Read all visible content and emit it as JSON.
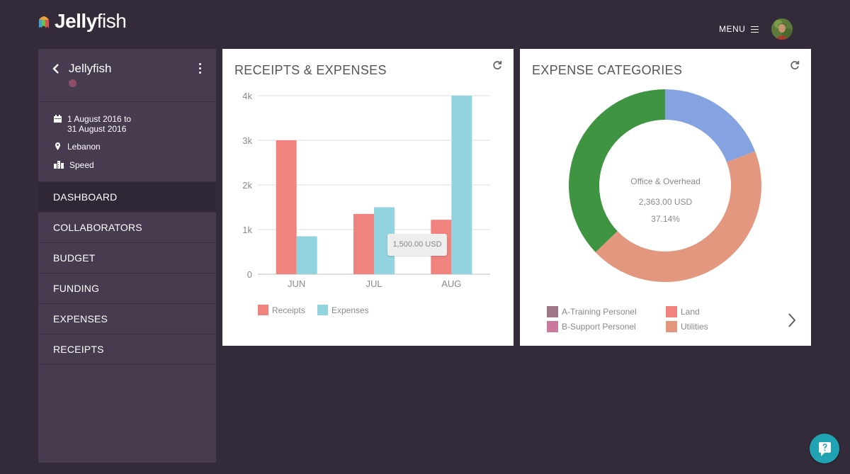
{
  "app": {
    "logo_bold": "Jelly",
    "logo_thin": "fish",
    "menu_label": "MENU"
  },
  "sidebar": {
    "title": "Jellyfish",
    "date_line1": "1 August 2016 to",
    "date_line2": "31 August 2016",
    "location": "Lebanon",
    "category": "Speed",
    "nav": [
      {
        "label": "DASHBOARD",
        "active": true
      },
      {
        "label": "COLLABORATORS",
        "active": false
      },
      {
        "label": "BUDGET",
        "active": false
      },
      {
        "label": "FUNDING",
        "active": false
      },
      {
        "label": "EXPENSES",
        "active": false
      },
      {
        "label": "RECEIPTS",
        "active": false
      }
    ]
  },
  "receipts_card": {
    "title": "RECEIPTS & EXPENSES",
    "tooltip": "1,500.00 USD",
    "legend_receipts": "Receipts",
    "legend_expenses": "Expenses"
  },
  "expense_card": {
    "title": "EXPENSE CATEGORIES",
    "center_label": "Office & Overhead",
    "center_value": "2,363.00 USD",
    "center_percent": "37.14%",
    "legend": [
      "A-Training Personel",
      "Land",
      "B-Support Personel",
      "Utilities"
    ]
  },
  "colors": {
    "receipts": "#f0837d",
    "expenses": "#91d3df",
    "donut_blue": "#85a3e0",
    "donut_salmon": "#e4977f",
    "donut_green": "#3f9442",
    "legend_a": "#9f7688",
    "legend_land": "#f0837d",
    "legend_b": "#c97a9c",
    "legend_util": "#e4977f"
  },
  "chart_data": [
    {
      "type": "bar",
      "title": "RECEIPTS & EXPENSES",
      "categories": [
        "JUN",
        "JUL",
        "AUG"
      ],
      "series": [
        {
          "name": "Receipts",
          "values": [
            3000,
            1350,
            1220
          ]
        },
        {
          "name": "Expenses",
          "values": [
            850,
            1500,
            4000
          ]
        }
      ],
      "yticks": [
        "0",
        "1k",
        "2k",
        "3k",
        "4k"
      ],
      "ylim": [
        0,
        4000
      ],
      "grid": true,
      "legend": "bottom-left"
    },
    {
      "type": "pie",
      "title": "EXPENSE CATEGORIES",
      "slices": [
        {
          "value": 19.2
        },
        {
          "value": 43.66
        },
        {
          "name": "Office & Overhead",
          "value": 37.14
        }
      ]
    }
  ]
}
